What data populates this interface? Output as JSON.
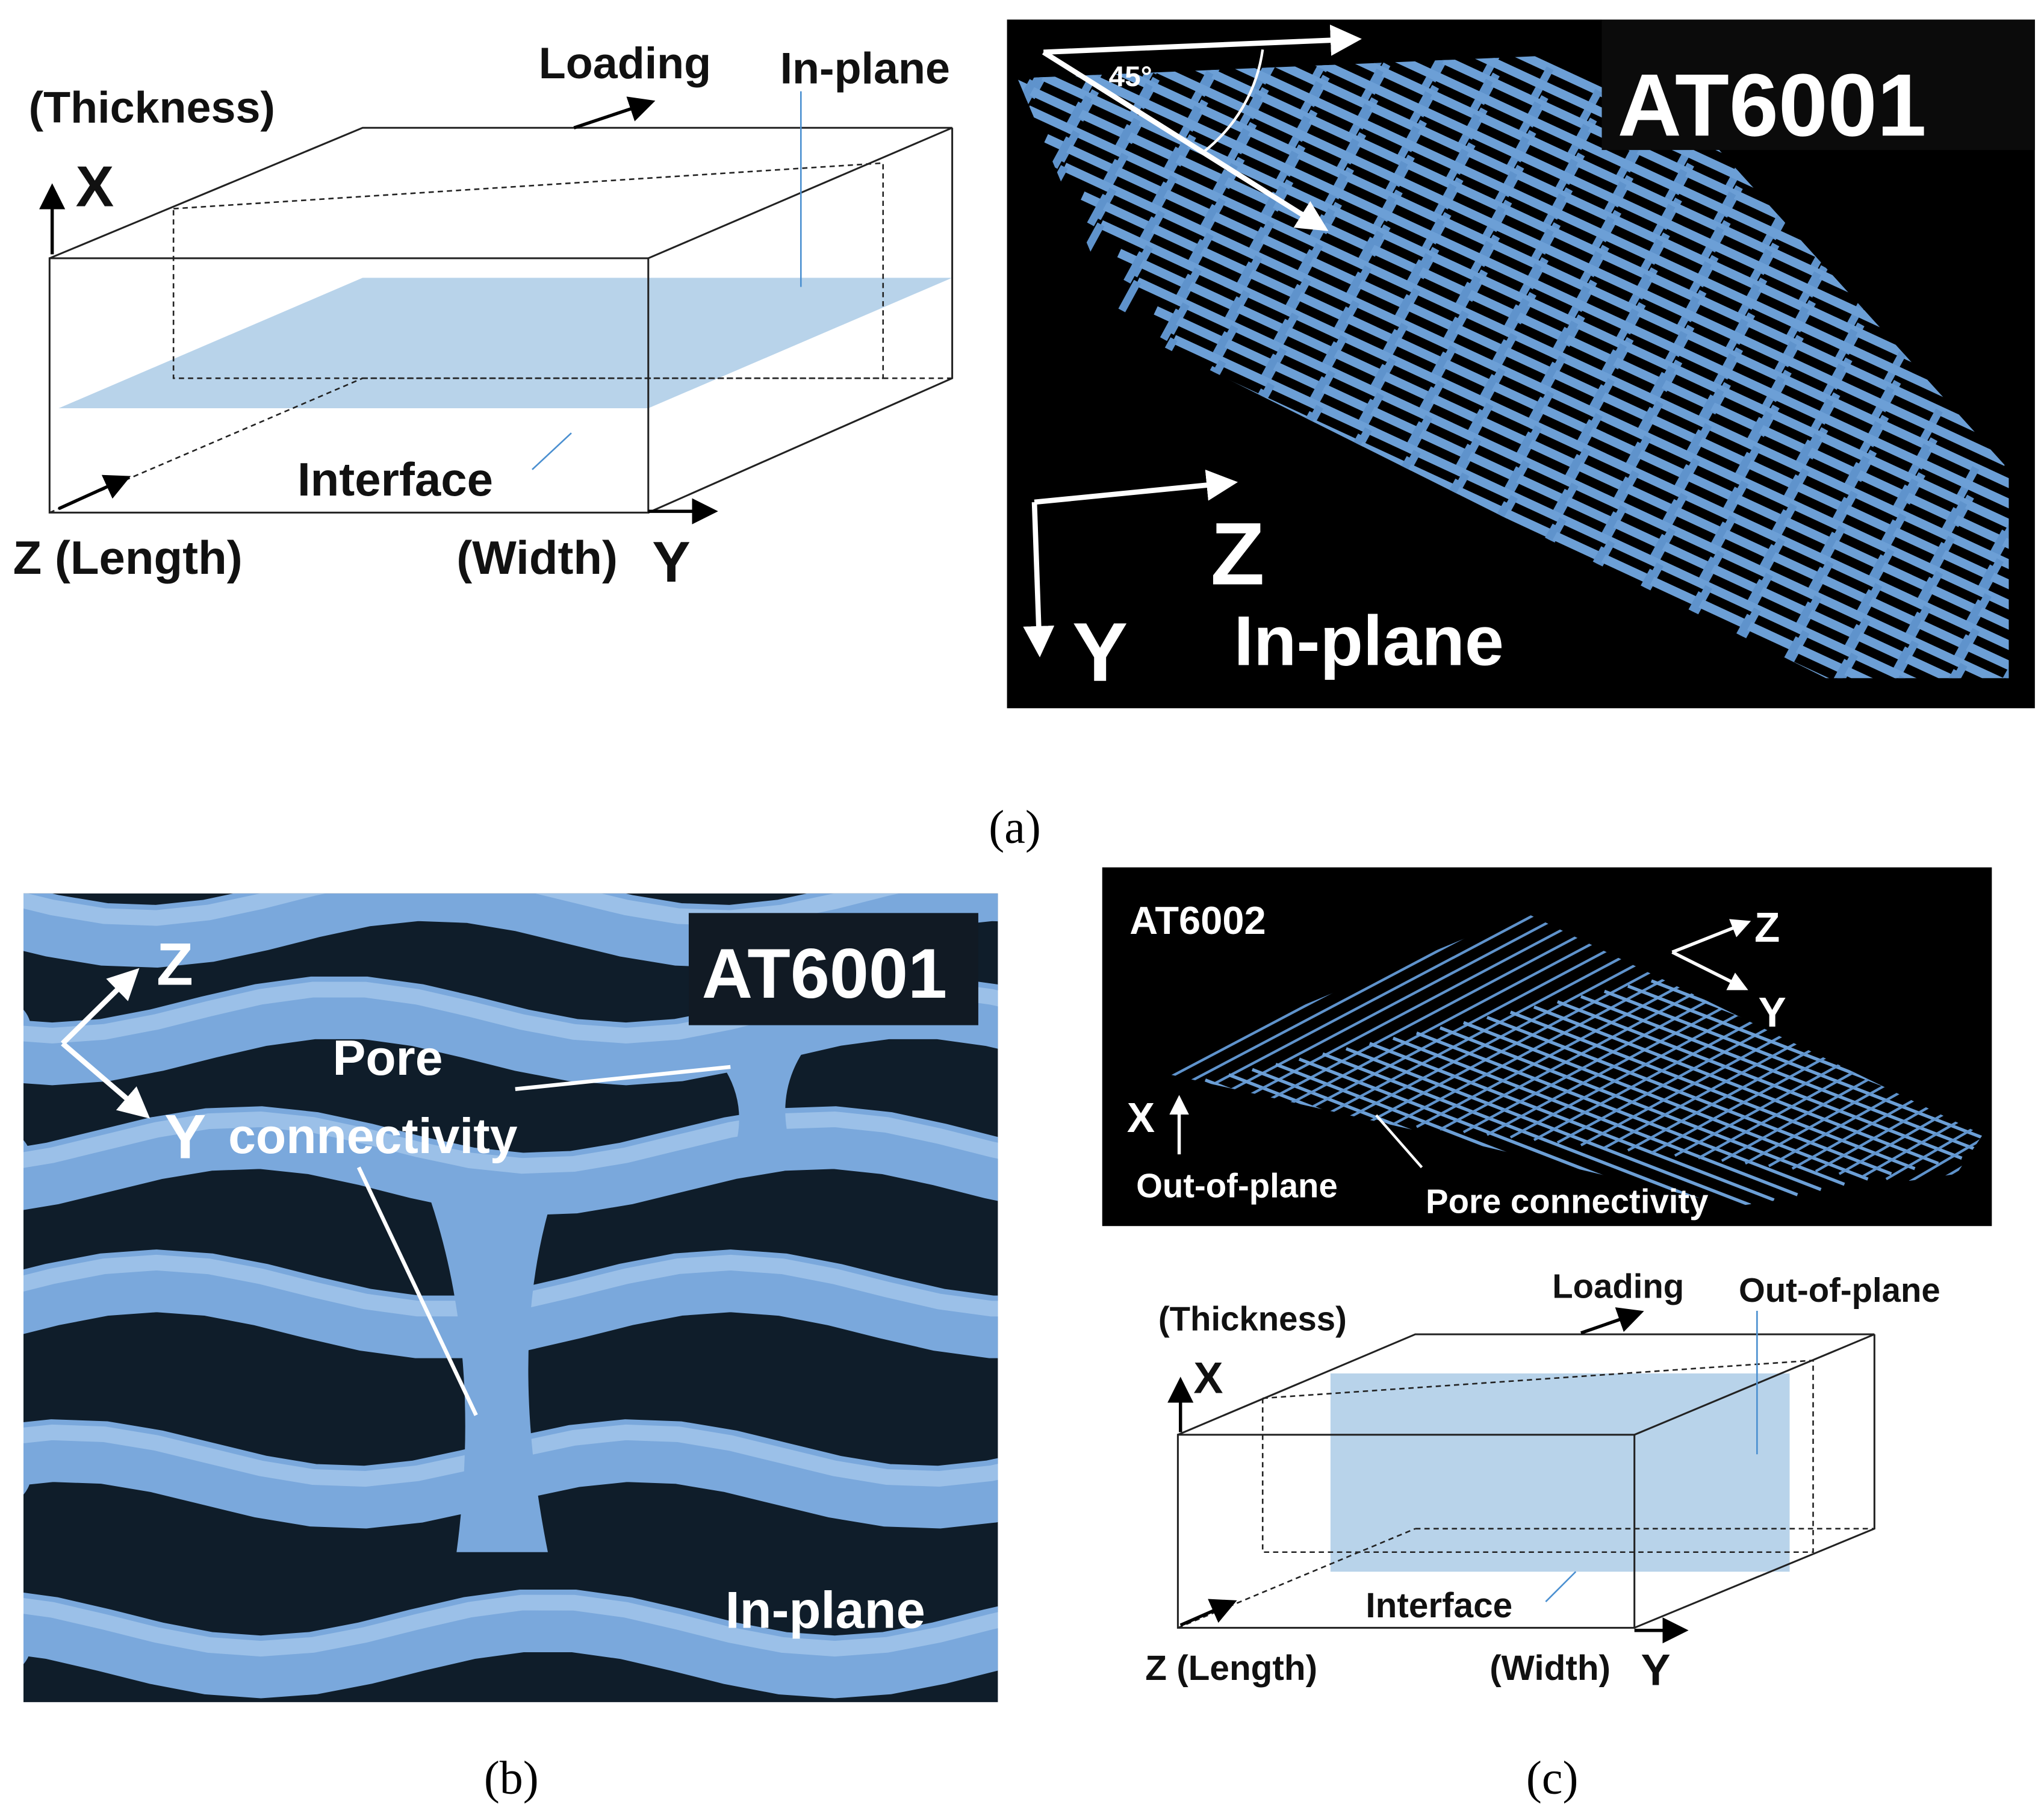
{
  "panel_a": {
    "diagram": {
      "thickness": "(Thickness)",
      "x": "X",
      "loading": "Loading",
      "in_plane": "In-plane",
      "interface": "Interface",
      "length": "Z (Length)",
      "width": "(Width)",
      "y": "Y"
    },
    "image": {
      "angle": "45°",
      "sample": "AT6001",
      "z": "Z",
      "y": "Y",
      "plane": "In-plane"
    },
    "caption": "(a)"
  },
  "panel_b": {
    "sample": "AT6001",
    "z": "Z",
    "y": "Y",
    "pore": "Pore",
    "connectivity": "connectivity",
    "plane": "In-plane",
    "caption": "(b)"
  },
  "panel_c": {
    "image": {
      "sample": "AT6002",
      "z": "Z",
      "y": "Y",
      "x": "X",
      "out_of_plane": "Out-of-plane",
      "pore_connectivity": "Pore connectivity"
    },
    "diagram": {
      "thickness": "(Thickness)",
      "x": "X",
      "loading": "Loading",
      "out_of_plane": "Out-of-plane",
      "interface": "Interface",
      "length": "Z (Length)",
      "width": "(Width)",
      "y": "Y"
    },
    "caption": "(c)"
  }
}
